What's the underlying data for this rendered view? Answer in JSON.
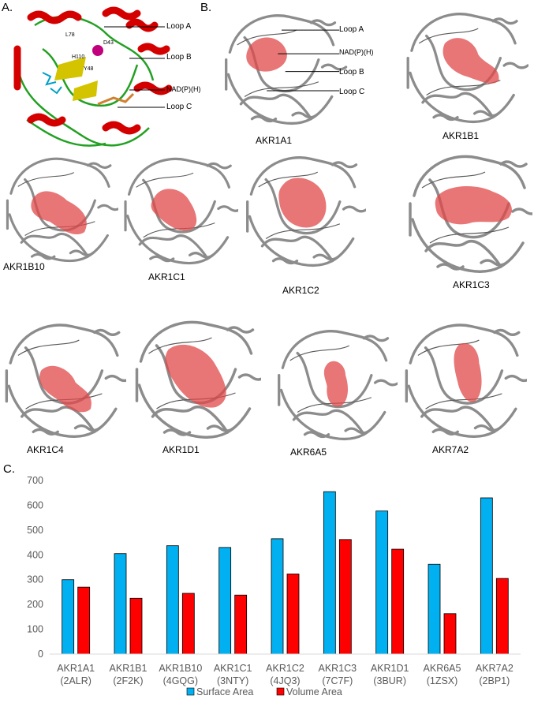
{
  "panels": {
    "a": "A.",
    "b": "B.",
    "c": "C."
  },
  "panel_a": {
    "callouts": [
      "Loop A",
      "Loop B",
      "NAD(P)(H)",
      "Loop C"
    ],
    "residues": [
      "L78",
      "D43",
      "H110",
      "Y48"
    ]
  },
  "panel_b": {
    "callouts": [
      "Loop A",
      "NAD(P)(H)",
      "Loop B",
      "Loop C"
    ],
    "captions": [
      "AKR1A1",
      "AKR1B1",
      "AKR1B10",
      "AKR1C1",
      "AKR1C2",
      "AKR1C3",
      "AKR1C4",
      "AKR1D1",
      "AKR6A5",
      "AKR7A2"
    ]
  },
  "colors": {
    "surface": "#00b0f0",
    "volume": "#ff0000",
    "axis_text": "#595959",
    "gridline": "#d9d9d9",
    "ribbon": "#8c8c8c",
    "pocket": "#e04848"
  },
  "chart_data": {
    "type": "bar",
    "categories": [
      [
        "AKR1A1",
        "(2ALR)"
      ],
      [
        "AKR1B1",
        "(2F2K)"
      ],
      [
        "AKR1B10",
        "(4GQG)"
      ],
      [
        "AKR1C1",
        "(3NTY)"
      ],
      [
        "AKR1C2",
        "(4JQ3)"
      ],
      [
        "AKR1C3",
        "(7C7F)"
      ],
      [
        "AKR1D1",
        "(3BUR)"
      ],
      [
        "AKR6A5",
        "(1ZSX)"
      ],
      [
        "AKR7A2",
        "(2BP1)"
      ]
    ],
    "series": [
      {
        "name": "Surface Area",
        "values": [
          300,
          405,
          437,
          430,
          465,
          655,
          577,
          362,
          630
        ]
      },
      {
        "name": "Volume Area",
        "values": [
          270,
          225,
          245,
          238,
          323,
          462,
          423,
          163,
          305
        ]
      }
    ],
    "ylim": [
      0,
      700
    ],
    "yticks": [
      0,
      100,
      200,
      300,
      400,
      500,
      600,
      700
    ],
    "legend_position": "bottom",
    "grid": false
  }
}
